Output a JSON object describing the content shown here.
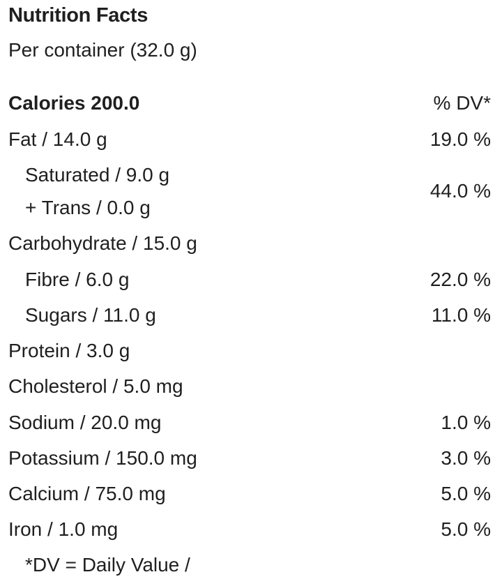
{
  "header": {
    "title": "Nutrition Facts",
    "serving": "Per container (32.0 g)"
  },
  "calories": {
    "label": "Calories 200.0",
    "dv_header": "% DV*"
  },
  "nutrients": {
    "fat": {
      "label": "Fat / 14.0 g",
      "dv": "19.0 %"
    },
    "saturated": {
      "label": "Saturated / 9.0 g"
    },
    "trans": {
      "label": "+ Trans / 0.0 g"
    },
    "sat_trans_dv": "44.0 %",
    "carbohydrate": {
      "label": "Carbohydrate / 15.0 g"
    },
    "fibre": {
      "label": "Fibre / 6.0 g",
      "dv": "22.0 %"
    },
    "sugars": {
      "label": "Sugars / 11.0 g",
      "dv": "11.0 %"
    },
    "protein": {
      "label": "Protein / 3.0 g"
    },
    "cholesterol": {
      "label": "Cholesterol / 5.0 mg"
    },
    "sodium": {
      "label": "Sodium / 20.0 mg",
      "dv": "1.0 %"
    },
    "potassium": {
      "label": "Potassium / 150.0 mg",
      "dv": "3.0 %"
    },
    "calcium": {
      "label": "Calcium / 75.0 mg",
      "dv": "5.0 %"
    },
    "iron": {
      "label": "Iron / 1.0 mg",
      "dv": "5.0 %"
    }
  },
  "footnote": "*DV = Daily Value /"
}
